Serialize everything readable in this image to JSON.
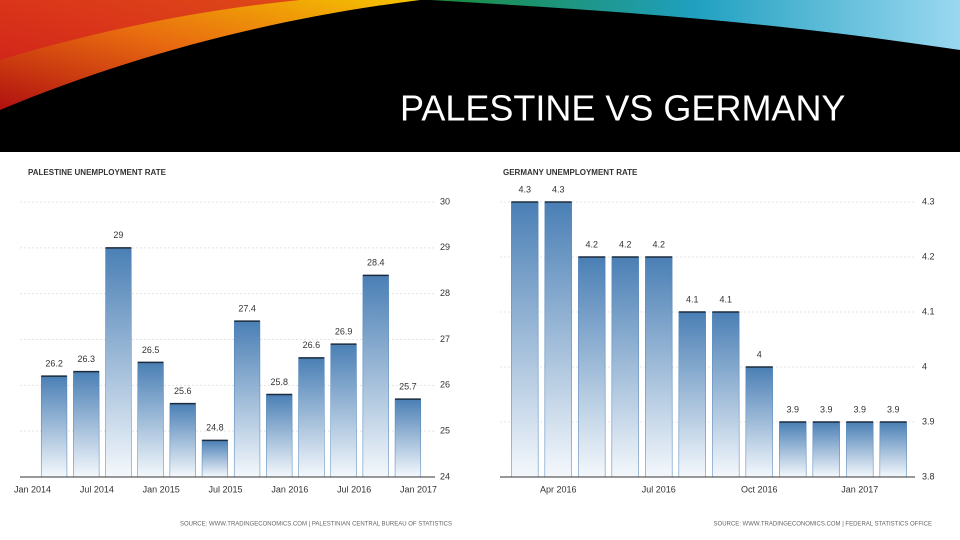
{
  "title": "PALESTINE VS GERMANY",
  "chart_data": [
    {
      "type": "bar",
      "title": "PALESTINE UNEMPLOYMENT RATE",
      "values": [
        26.2,
        26.3,
        29,
        26.5,
        25.6,
        24.8,
        27.4,
        25.8,
        26.6,
        26.9,
        28.4,
        25.7
      ],
      "xtick_labels": [
        "Jan 2014",
        "Jul 2014",
        "Jan 2015",
        "Jul 2015",
        "Jan 2016",
        "Jul 2016",
        "Jan 2017"
      ],
      "ylim": [
        24,
        30
      ],
      "yticks": [
        24,
        25,
        26,
        27,
        28,
        29,
        30
      ],
      "grid": true,
      "color": "#4a7fb5",
      "source": "SOURCE: WWW.TRADINGECONOMICS.COM | PALESTINIAN CENTRAL BUREAU OF STATISTICS"
    },
    {
      "type": "bar",
      "title": "GERMANY UNEMPLOYMENT RATE",
      "categories": [
        null,
        "Apr 2016",
        null,
        null,
        "Jul 2016",
        null,
        null,
        "Oct 2016",
        null,
        null,
        "Jan 2017",
        null
      ],
      "values": [
        4.3,
        4.3,
        4.2,
        4.2,
        4.2,
        4.1,
        4.1,
        4,
        3.9,
        3.9,
        3.9,
        3.9
      ],
      "ylim": [
        3.8,
        4.3
      ],
      "yticks": [
        3.8,
        3.9,
        4,
        4.1,
        4.2,
        4.3
      ],
      "grid": true,
      "color": "#4a7fb5",
      "source": "SOURCE: WWW.TRADINGECONOMICS.COM | FEDERAL STATISTICS OFFICE"
    }
  ]
}
